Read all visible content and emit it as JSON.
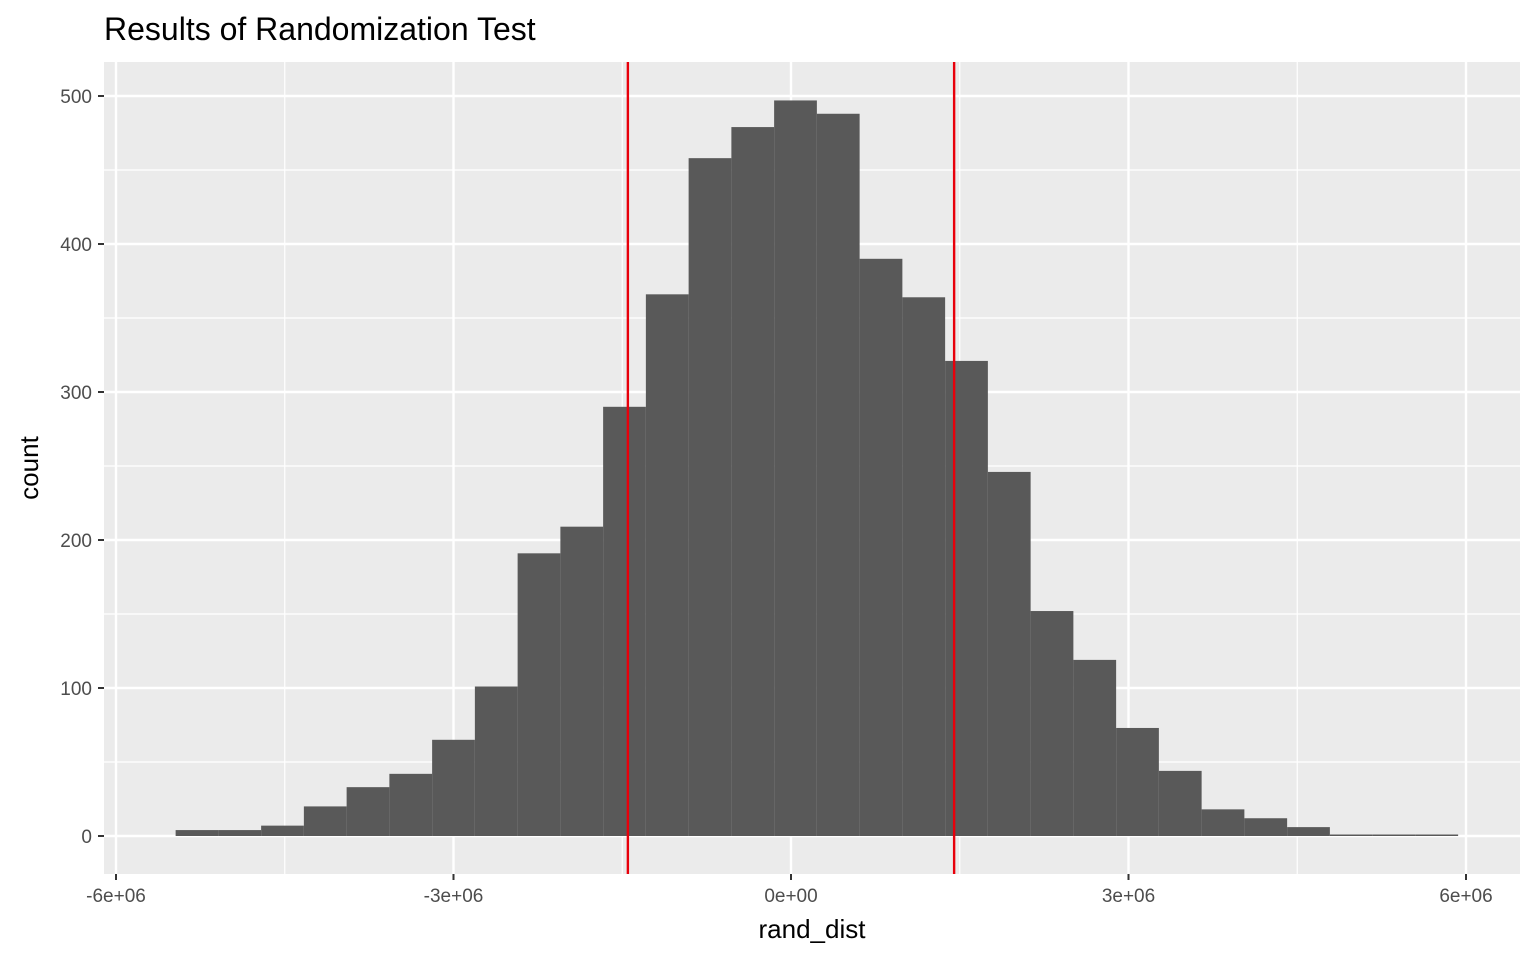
{
  "chart_data": {
    "type": "bar",
    "title": "Results of Randomization Test",
    "xlabel": "rand_dist",
    "ylabel": "count",
    "xlim": [
      -6000000,
      6000000
    ],
    "ylim": [
      0,
      500
    ],
    "x_ticks": [
      {
        "value": -6000000,
        "label": "-6e+06"
      },
      {
        "value": -3000000,
        "label": "-3e+06"
      },
      {
        "value": 0,
        "label": "0e+00"
      },
      {
        "value": 3000000,
        "label": "3e+06"
      },
      {
        "value": 6000000,
        "label": "6e+06"
      }
    ],
    "y_ticks": [
      {
        "value": 0,
        "label": "0"
      },
      {
        "value": 100,
        "label": "100"
      },
      {
        "value": 200,
        "label": "200"
      },
      {
        "value": 300,
        "label": "300"
      },
      {
        "value": 400,
        "label": "400"
      },
      {
        "value": 500,
        "label": "500"
      }
    ],
    "grid": true,
    "bin_width": 380000,
    "bins": [
      {
        "x_start": -5470000,
        "count": 4
      },
      {
        "x_start": -5090000,
        "count": 4
      },
      {
        "x_start": -4710000,
        "count": 7
      },
      {
        "x_start": -4330000,
        "count": 20
      },
      {
        "x_start": -3950000,
        "count": 33
      },
      {
        "x_start": -3570000,
        "count": 42
      },
      {
        "x_start": -3190000,
        "count": 65
      },
      {
        "x_start": -2810000,
        "count": 101
      },
      {
        "x_start": -2430000,
        "count": 191
      },
      {
        "x_start": -2050000,
        "count": 209
      },
      {
        "x_start": -1670000,
        "count": 290
      },
      {
        "x_start": -1290000,
        "count": 366
      },
      {
        "x_start": -910000,
        "count": 458
      },
      {
        "x_start": -530000,
        "count": 479
      },
      {
        "x_start": -150000,
        "count": 497
      },
      {
        "x_start": 230000,
        "count": 488
      },
      {
        "x_start": 610000,
        "count": 390
      },
      {
        "x_start": 990000,
        "count": 364
      },
      {
        "x_start": 1370000,
        "count": 321
      },
      {
        "x_start": 1750000,
        "count": 246
      },
      {
        "x_start": 2130000,
        "count": 152
      },
      {
        "x_start": 2510000,
        "count": 119
      },
      {
        "x_start": 2890000,
        "count": 73
      },
      {
        "x_start": 3270000,
        "count": 44
      },
      {
        "x_start": 3650000,
        "count": 18
      },
      {
        "x_start": 4030000,
        "count": 12
      },
      {
        "x_start": 4410000,
        "count": 6
      },
      {
        "x_start": 4790000,
        "count": 1
      },
      {
        "x_start": 5170000,
        "count": 1
      },
      {
        "x_start": 5550000,
        "count": 1
      }
    ],
    "vlines": [
      -1450000,
      1450000
    ],
    "colors": {
      "bar": "#595959",
      "vline": "#e8000b",
      "panel": "#ebebeb",
      "grid": "#ffffff",
      "tick_text": "#4d4d4d",
      "tick_mark": "#333333"
    }
  }
}
